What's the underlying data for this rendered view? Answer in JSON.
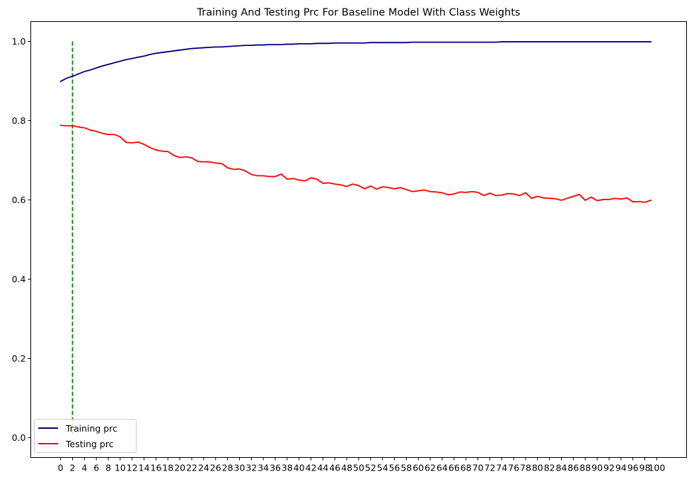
{
  "chart_data": {
    "type": "line",
    "title": "Training And Testing Prc For Baseline Model With Class Weights",
    "xlabel": "",
    "ylabel": "",
    "xlim": [
      -5,
      105
    ],
    "ylim": [
      -0.05,
      1.05
    ],
    "x_ticks": [
      0,
      2,
      4,
      6,
      8,
      10,
      12,
      14,
      16,
      18,
      20,
      22,
      24,
      26,
      28,
      30,
      32,
      34,
      36,
      38,
      40,
      42,
      44,
      46,
      48,
      50,
      52,
      54,
      56,
      58,
      60,
      62,
      64,
      66,
      68,
      70,
      72,
      74,
      76,
      78,
      80,
      82,
      84,
      86,
      88,
      90,
      92,
      94,
      96,
      98,
      100
    ],
    "y_ticks": [
      0.0,
      0.2,
      0.4,
      0.6,
      0.8,
      1.0
    ],
    "grid": false,
    "legend_position": "lower-left",
    "x": [
      0,
      1,
      2,
      3,
      4,
      5,
      6,
      7,
      8,
      9,
      10,
      11,
      12,
      13,
      14,
      15,
      16,
      17,
      18,
      19,
      20,
      21,
      22,
      23,
      24,
      25,
      26,
      27,
      28,
      29,
      30,
      31,
      32,
      33,
      34,
      35,
      36,
      37,
      38,
      39,
      40,
      41,
      42,
      43,
      44,
      45,
      46,
      47,
      48,
      49,
      50,
      51,
      52,
      53,
      54,
      55,
      56,
      57,
      58,
      59,
      60,
      61,
      62,
      63,
      64,
      65,
      66,
      67,
      68,
      69,
      70,
      71,
      72,
      73,
      74,
      75,
      76,
      77,
      78,
      79,
      80,
      81,
      82,
      83,
      84,
      85,
      86,
      87,
      88,
      89,
      90,
      91,
      92,
      93,
      94,
      95,
      96,
      97,
      98,
      99
    ],
    "series": [
      {
        "name": "Training prc",
        "color": "#000080",
        "values": [
          0.899,
          0.907,
          0.912,
          0.918,
          0.924,
          0.928,
          0.933,
          0.938,
          0.942,
          0.946,
          0.95,
          0.954,
          0.957,
          0.96,
          0.963,
          0.967,
          0.97,
          0.972,
          0.974,
          0.976,
          0.978,
          0.98,
          0.982,
          0.983,
          0.984,
          0.985,
          0.986,
          0.986,
          0.987,
          0.988,
          0.989,
          0.99,
          0.99,
          0.991,
          0.991,
          0.992,
          0.992,
          0.992,
          0.993,
          0.993,
          0.994,
          0.994,
          0.994,
          0.995,
          0.995,
          0.995,
          0.996,
          0.996,
          0.996,
          0.996,
          0.996,
          0.996,
          0.997,
          0.997,
          0.997,
          0.997,
          0.997,
          0.997,
          0.997,
          0.998,
          0.998,
          0.998,
          0.998,
          0.998,
          0.998,
          0.998,
          0.998,
          0.998,
          0.998,
          0.998,
          0.998,
          0.998,
          0.998,
          0.998,
          0.999,
          0.999,
          0.999,
          0.999,
          0.999,
          0.999,
          0.999,
          0.999,
          0.999,
          0.999,
          0.999,
          0.999,
          0.999,
          0.999,
          0.999,
          0.999,
          0.999,
          0.999,
          0.999,
          0.999,
          0.999,
          0.999,
          0.999,
          0.999,
          0.999,
          0.999
        ]
      },
      {
        "name": "Testing prc",
        "color": "#ff0000",
        "values": [
          0.788,
          0.787,
          0.787,
          0.784,
          0.782,
          0.776,
          0.773,
          0.768,
          0.765,
          0.765,
          0.759,
          0.745,
          0.744,
          0.746,
          0.74,
          0.732,
          0.726,
          0.723,
          0.722,
          0.712,
          0.707,
          0.709,
          0.706,
          0.697,
          0.696,
          0.696,
          0.693,
          0.692,
          0.681,
          0.677,
          0.678,
          0.673,
          0.664,
          0.661,
          0.661,
          0.659,
          0.659,
          0.665,
          0.652,
          0.654,
          0.65,
          0.648,
          0.656,
          0.652,
          0.642,
          0.643,
          0.64,
          0.638,
          0.634,
          0.64,
          0.636,
          0.628,
          0.635,
          0.627,
          0.633,
          0.631,
          0.628,
          0.631,
          0.626,
          0.621,
          0.623,
          0.625,
          0.621,
          0.62,
          0.618,
          0.613,
          0.615,
          0.62,
          0.619,
          0.621,
          0.619,
          0.611,
          0.617,
          0.611,
          0.612,
          0.616,
          0.615,
          0.611,
          0.618,
          0.604,
          0.609,
          0.605,
          0.604,
          0.603,
          0.599,
          0.604,
          0.609,
          0.614,
          0.599,
          0.607,
          0.598,
          0.601,
          0.601,
          0.604,
          0.602,
          0.605,
          0.595,
          0.596,
          0.594,
          0.599
        ]
      }
    ],
    "reference_line": {
      "type": "vertical",
      "x": 2,
      "y_range": [
        0.0,
        1.0
      ],
      "color": "#008000",
      "style": "dashed"
    }
  }
}
